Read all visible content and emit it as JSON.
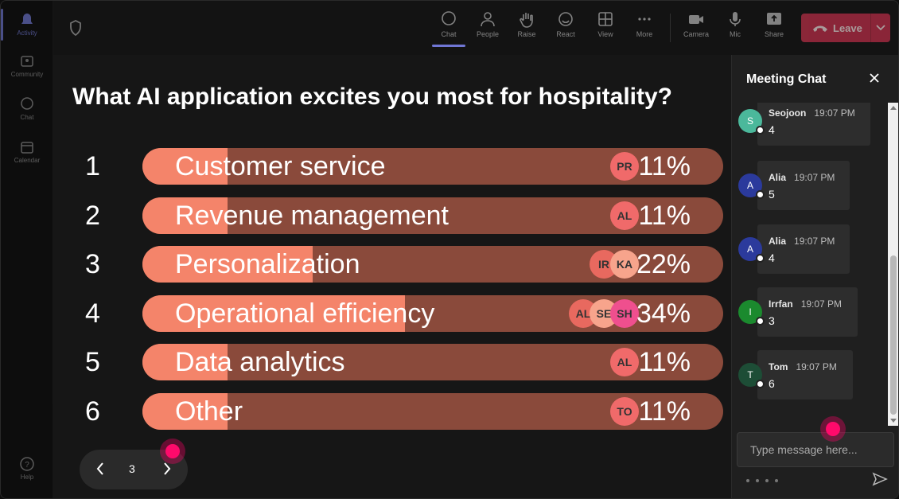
{
  "rail": {
    "items": [
      {
        "label": "Activity",
        "icon": "bell-icon"
      },
      {
        "label": "Community",
        "icon": "community-icon"
      },
      {
        "label": "Chat",
        "icon": "chat-icon"
      },
      {
        "label": "Calendar",
        "icon": "calendar-icon"
      }
    ],
    "help_label": "Help"
  },
  "toolbar": {
    "buttons": [
      {
        "label": "Chat",
        "icon": "chat-icon",
        "active": true
      },
      {
        "label": "People",
        "icon": "people-icon"
      },
      {
        "label": "Raise",
        "icon": "hand-icon"
      },
      {
        "label": "React",
        "icon": "smile-icon"
      },
      {
        "label": "View",
        "icon": "grid-icon"
      },
      {
        "label": "More",
        "icon": "ellipsis-icon"
      },
      {
        "label": "Camera",
        "icon": "camera-icon"
      },
      {
        "label": "Mic",
        "icon": "mic-icon"
      },
      {
        "label": "Share",
        "icon": "share-icon"
      }
    ],
    "leave_label": "Leave",
    "leave_color": "#c4314b"
  },
  "poll": {
    "question": "What AI application excites you most for hospitality?",
    "bar_color": "#f4846a",
    "track_color": "#8a4a3b",
    "options": [
      {
        "num": "1",
        "label": "Customer service",
        "pct": "11%",
        "value": 0.11,
        "voters": [
          {
            "initials": "PR",
            "color": "#f06a6a"
          }
        ]
      },
      {
        "num": "2",
        "label": "Revenue management",
        "pct": "11%",
        "value": 0.11,
        "voters": [
          {
            "initials": "AL",
            "color": "#f06a6a"
          }
        ]
      },
      {
        "num": "3",
        "label": "Personalization",
        "pct": "22%",
        "value": 0.22,
        "voters": [
          {
            "initials": "IR",
            "color": "#e8695f"
          },
          {
            "initials": "KA",
            "color": "#f7a48c"
          }
        ]
      },
      {
        "num": "4",
        "label": "Operational efficiency",
        "pct": "34%",
        "value": 0.34,
        "voters": [
          {
            "initials": "AL",
            "color": "#e8695f"
          },
          {
            "initials": "SE",
            "color": "#f7a48c"
          },
          {
            "initials": "SH",
            "color": "#ef4f8e"
          }
        ]
      },
      {
        "num": "5",
        "label": "Data analytics",
        "pct": "11%",
        "value": 0.11,
        "voters": [
          {
            "initials": "AL",
            "color": "#f06a6a"
          }
        ]
      },
      {
        "num": "6",
        "label": "Other",
        "pct": "11%",
        "value": 0.11,
        "voters": [
          {
            "initials": "TO",
            "color": "#f06a6a"
          }
        ]
      }
    ]
  },
  "pager": {
    "page": "3"
  },
  "chat": {
    "title": "Meeting Chat",
    "messages": [
      {
        "avatar": "S",
        "avatar_color": "#4bb89b",
        "name": "Seojoon",
        "time": "19:07 PM",
        "text": "4"
      },
      {
        "avatar": "A",
        "avatar_color": "#2b3a9c",
        "name": "Alia",
        "time": "19:07 PM",
        "text": "5"
      },
      {
        "avatar": "A",
        "avatar_color": "#2b3a9c",
        "name": "Alia",
        "time": "19:07 PM",
        "text": "4"
      },
      {
        "avatar": "I",
        "avatar_color": "#1b8a2e",
        "name": "Irrfan",
        "time": "19:07 PM",
        "text": "3"
      },
      {
        "avatar": "T",
        "avatar_color": "#1d4d36",
        "name": "Tom",
        "time": "19:07 PM",
        "text": "6"
      }
    ],
    "input_placeholder": "Type message here..."
  }
}
